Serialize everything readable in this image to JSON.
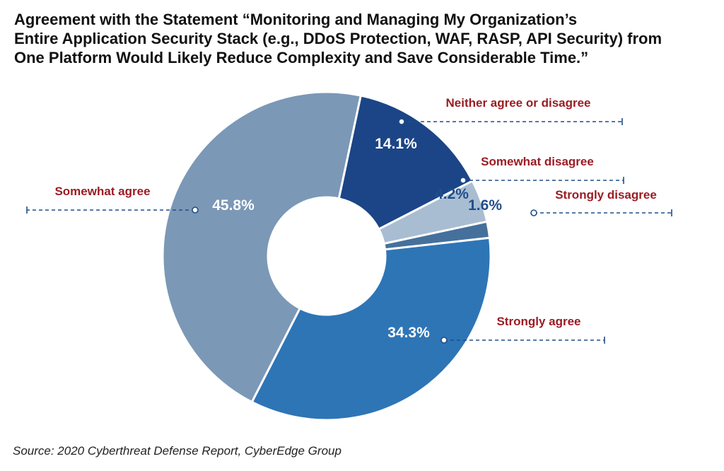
{
  "title_lines": [
    "Agreement with the Statement “Monitoring and Managing My Organization’s",
    "Entire Application Security Stack (e.g., DDoS Protection, WAF, RASP, API Security) from",
    "One Platform Would Likely Reduce Complexity and Save Considerable Time.”"
  ],
  "source": "Source: 2020 Cyberthreat Defense Report, CyberEdge Group",
  "chart_data": {
    "type": "pie",
    "donut": true,
    "title": "Agreement with the Statement “Monitoring and Managing My Organization’s Entire Application Security Stack (e.g., DDoS Protection, WAF, RASP, API Security) from One Platform Would Likely Reduce Complexity and Save Considerable Time.”",
    "unit": "%",
    "slices": [
      {
        "label": "Neither agree or disagree",
        "value": 14.1,
        "value_label": "14.1%",
        "color": "#1b4586"
      },
      {
        "label": "Somewhat disagree",
        "value": 4.2,
        "value_label": "4.2%",
        "color": "#a9bdd2"
      },
      {
        "label": "Strongly disagree",
        "value": 1.6,
        "value_label": "1.6%",
        "color": "#46709c"
      },
      {
        "label": "Strongly agree",
        "value": 34.3,
        "value_label": "34.3%",
        "color": "#2e75b6"
      },
      {
        "label": "Somewhat agree",
        "value": 45.8,
        "value_label": "45.8%",
        "color": "#7b98b6"
      }
    ],
    "label_color": "#9b1c24",
    "leader_color": "#1f4e8a"
  }
}
